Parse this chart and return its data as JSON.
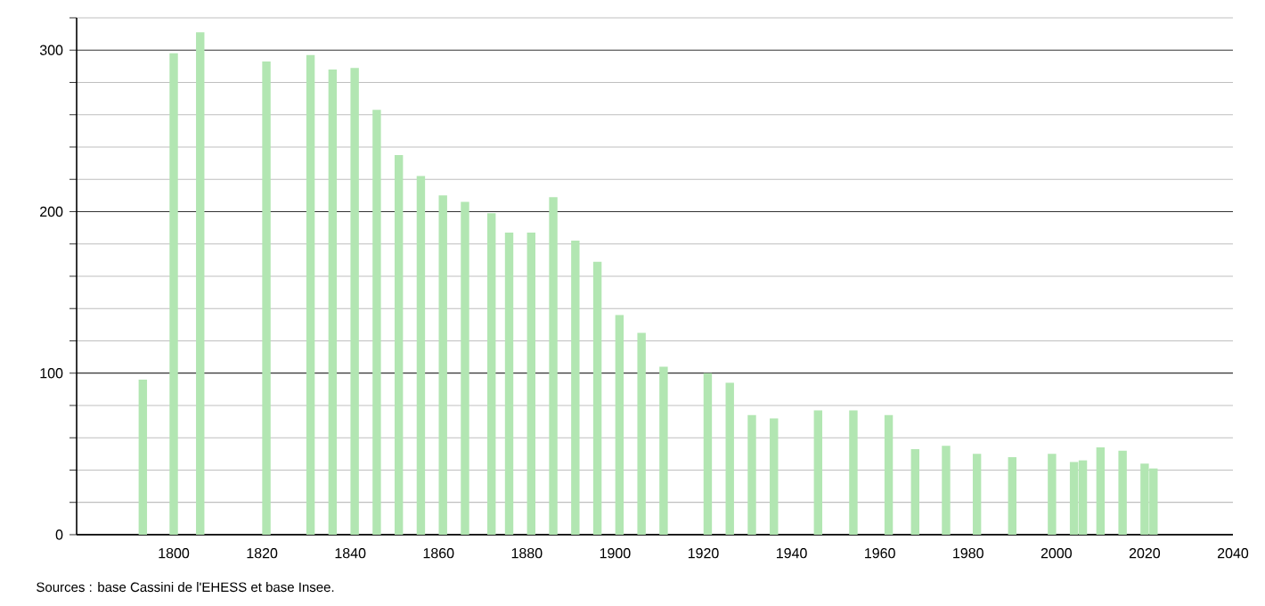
{
  "chart_data": {
    "type": "bar",
    "x": [
      1793,
      1800,
      1806,
      1821,
      1831,
      1836,
      1841,
      1846,
      1851,
      1856,
      1861,
      1866,
      1872,
      1876,
      1881,
      1886,
      1891,
      1896,
      1901,
      1906,
      1911,
      1921,
      1926,
      1931,
      1936,
      1946,
      1954,
      1962,
      1968,
      1975,
      1982,
      1990,
      1999,
      2004,
      2006,
      2010,
      2015,
      2020,
      2022
    ],
    "values": [
      96,
      298,
      311,
      293,
      297,
      288,
      289,
      263,
      235,
      222,
      210,
      206,
      199,
      187,
      187,
      209,
      182,
      169,
      136,
      125,
      104,
      100,
      94,
      74,
      72,
      77,
      77,
      74,
      53,
      55,
      50,
      48,
      50,
      45,
      46,
      54,
      52,
      44,
      41
    ],
    "color": "#b2e6b2",
    "xlim": [
      1778,
      2040
    ],
    "xticks": [
      1800,
      1820,
      1840,
      1860,
      1880,
      1900,
      1920,
      1940,
      1960,
      1980,
      2000,
      2020,
      2040
    ],
    "ylim": [
      0,
      320
    ],
    "yticks": [
      0,
      {
        "value": 20,
        "label": null
      },
      {
        "value": 40,
        "label": null
      },
      {
        "value": 60,
        "label": null
      },
      {
        "value": 80,
        "label": null
      },
      100,
      {
        "value": 120,
        "label": null
      },
      {
        "value": 140,
        "label": null
      },
      {
        "value": 160,
        "label": null
      },
      {
        "value": 180,
        "label": null
      },
      200,
      {
        "value": 220,
        "label": null
      },
      {
        "value": 240,
        "label": null
      },
      {
        "value": 260,
        "label": null
      },
      {
        "value": 280,
        "label": null
      },
      300,
      {
        "value": 320,
        "label": null
      }
    ],
    "grid": "y",
    "annotations": [
      "Sources : base Cassini de l'EHESS et base Insee."
    ]
  }
}
